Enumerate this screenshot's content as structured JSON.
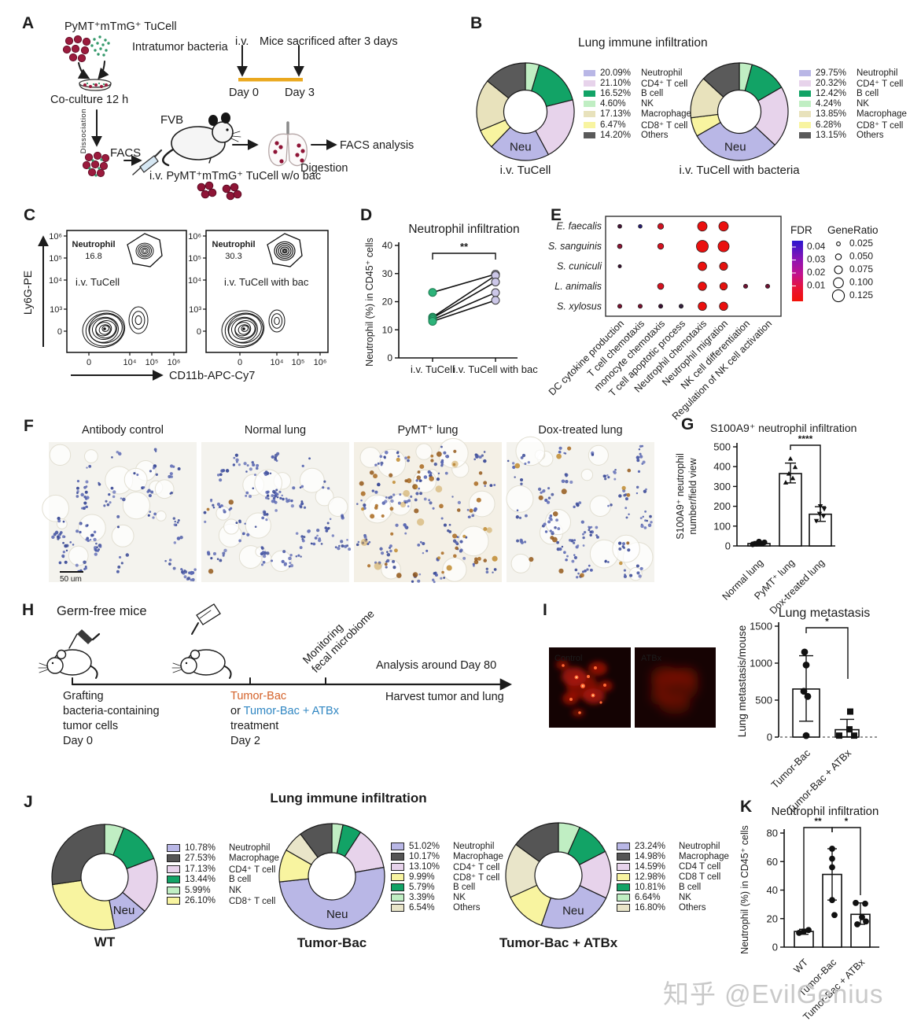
{
  "watermark": {
    "text": "知乎 @EvilGenius"
  },
  "panelA": {
    "label": "A",
    "cell_title": "PyMT⁺mTmG⁺ TuCell",
    "bacteria_label": "Intratumor bacteria",
    "coculture": "Co-culture 12 h",
    "dissociation": "Dissociation",
    "facs": "FACS",
    "fvb": "FVB",
    "iv_line": "i.v. PyMT⁺mTmG⁺ TuCell w/o bac",
    "digestion": "Digestion",
    "facs_analysis": "FACS analysis",
    "timeline": {
      "iv": "i.v.",
      "sacrificed": "Mice sacrificed after 3 days",
      "day0": "Day 0",
      "day3": "Day 3"
    }
  },
  "panelB": {
    "label": "B",
    "title": "Lung immune infiltration"
  },
  "panelC": {
    "label": "C",
    "ylabel": "Ly6G-PE",
    "xlabel": "CD11b-APC-Cy7",
    "yticks": [
      "10⁶",
      "10⁵",
      "10⁴",
      "10³",
      "0"
    ],
    "xticks": [
      "0",
      "10⁴",
      "10⁵",
      "10⁶"
    ],
    "plots": [
      {
        "gate_label": "Neutrophil",
        "gate_value": "16.8",
        "sample": "i.v. TuCell"
      },
      {
        "gate_label": "Neutrophil",
        "gate_value": "30.3",
        "sample": "i.v. TuCell with bac"
      }
    ]
  },
  "panelD": {
    "label": "D"
  },
  "panelE": {
    "label": "E"
  },
  "panelF": {
    "label": "F",
    "scale_bar": "50 um",
    "images": [
      {
        "title": "Antibody control",
        "stain": 0
      },
      {
        "title": "Normal lung",
        "stain": 3
      },
      {
        "title": "PyMT⁺ lung",
        "stain": 55
      },
      {
        "title": "Dox-treated lung",
        "stain": 16
      }
    ]
  },
  "panelG": {
    "label": "G"
  },
  "panelH": {
    "label": "H",
    "title": "Germ-free mice",
    "grafting": [
      "Grafting",
      "bacteria-containing",
      "tumor cells",
      "Day 0"
    ],
    "treat_orange": "Tumor-Bac",
    "treat_or": "or ",
    "treat_blue": "Tumor-Bac + ATBx",
    "treat_line3": "treatment",
    "treat_line4": "Day 2",
    "monitor_line1": "Monitoring",
    "monitor_line2": "fecal microbiome",
    "analysis": "Analysis around Day 80",
    "harvest": "Harvest tumor and lung",
    "orange_color": "#d4622a",
    "blue_color": "#2f86c2"
  },
  "panelI": {
    "label": "I",
    "images": [
      {
        "label": "Control"
      },
      {
        "label": "ATBx"
      }
    ]
  },
  "panelJ": {
    "label": "J",
    "title": "Lung immune infiltration"
  },
  "panelK": {
    "label": "K"
  },
  "chart_data": [
    {
      "id": "B1",
      "type": "donut",
      "title": "Lung immune infiltration",
      "caption": "i.v. TuCell",
      "center_label": "Neu",
      "legend": [
        {
          "pct": "20.09%",
          "v": 20.09,
          "label": "Neutrophil",
          "color": "#b9b7e6"
        },
        {
          "pct": "21.10%",
          "v": 21.1,
          "label": "CD4⁺ T cell",
          "color": "#e7d3eb"
        },
        {
          "pct": "16.52%",
          "v": 16.52,
          "label": "B cell",
          "color": "#12a366"
        },
        {
          "pct": "4.60%",
          "v": 4.6,
          "label": "NK",
          "color": "#c0eec3"
        },
        {
          "pct": "17.13%",
          "v": 17.13,
          "label": "Macrophage",
          "color": "#e8e2bc"
        },
        {
          "pct": "6.47%",
          "v": 6.47,
          "label": "CD8⁺ T cell",
          "color": "#f8f4a0"
        },
        {
          "pct": "14.20%",
          "v": 14.2,
          "label": "Others",
          "color": "#5a5a5a"
        }
      ],
      "order": [
        "NK",
        "B cell",
        "CD4⁺ T cell",
        "Neutrophil",
        "CD8⁺ T cell",
        "Macrophage",
        "Others"
      ]
    },
    {
      "id": "B2",
      "type": "donut",
      "title": "Lung immune infiltration",
      "caption": "i.v. TuCell with bacteria",
      "center_label": "Neu",
      "legend": [
        {
          "pct": "29.75%",
          "v": 29.75,
          "label": "Neutrophil",
          "color": "#b9b7e6"
        },
        {
          "pct": "20.32%",
          "v": 20.32,
          "label": "CD4⁺ T cell",
          "color": "#e7d3eb"
        },
        {
          "pct": "12.42%",
          "v": 12.42,
          "label": "B cell",
          "color": "#12a366"
        },
        {
          "pct": "4.24%",
          "v": 4.24,
          "label": "NK",
          "color": "#c0eec3"
        },
        {
          "pct": "13.85%",
          "v": 13.85,
          "label": "Macrophage",
          "color": "#e8e2bc"
        },
        {
          "pct": "6.28%",
          "v": 6.28,
          "label": "CD8⁺ T cell",
          "color": "#f8f4a0"
        },
        {
          "pct": "13.15%",
          "v": 13.15,
          "label": "Others",
          "color": "#5a5a5a"
        }
      ],
      "order": [
        "NK",
        "B cell",
        "CD4⁺ T cell",
        "Neutrophil",
        "CD8⁺ T cell",
        "Macrophage",
        "Others"
      ]
    },
    {
      "id": "D",
      "type": "paired-line",
      "title": "Neutrophil infiltration",
      "ylabel": "Neutrophil (%) in CD45⁺ cells",
      "ylim": [
        0,
        40
      ],
      "yticks": [
        0,
        10,
        20,
        30,
        40
      ],
      "categories": [
        "i.v. TuCell",
        "i.v. TuCell with bac"
      ],
      "pairs": [
        [
          23.3,
          29.8
        ],
        [
          14.5,
          29.3
        ],
        [
          14.2,
          27.0
        ],
        [
          13.6,
          23.2
        ],
        [
          13.0,
          20.5
        ]
      ],
      "sig": "**",
      "left_color": "#2db37a",
      "right_color": "#ccc7e8"
    },
    {
      "id": "E",
      "type": "dotplot",
      "rows": [
        "E. faecalis",
        "S. sanguinis",
        "S. cuniculi",
        "L. animalis",
        "S. xylosus"
      ],
      "cols": [
        "DC cytokine production",
        "T cell chemotaxis",
        "monocyte chemotaxis",
        "T cell apoptotic process",
        "Neutrophil chemotaxis",
        "Neutrophil migration",
        "NK cell differentiation",
        "Regulation of NK cell activation"
      ],
      "highlight_cols": [
        4,
        5
      ],
      "highlight_color": "#e8192c",
      "dots": [
        {
          "r": 0,
          "c": 0,
          "gr": 0.027,
          "fdr": 0.03,
          "col": "#451335"
        },
        {
          "r": 0,
          "c": 1,
          "gr": 0.025,
          "fdr": 0.04,
          "col": "#261c6e"
        },
        {
          "r": 0,
          "c": 2,
          "gr": 0.05,
          "fdr": 0.012,
          "col": "#cf1322"
        },
        {
          "r": 0,
          "c": 4,
          "gr": 0.095,
          "fdr": 0.005,
          "col": "#ea100f"
        },
        {
          "r": 0,
          "c": 5,
          "gr": 0.095,
          "fdr": 0.005,
          "col": "#ea100f"
        },
        {
          "r": 1,
          "c": 0,
          "gr": 0.035,
          "fdr": 0.02,
          "col": "#8c1535"
        },
        {
          "r": 1,
          "c": 2,
          "gr": 0.052,
          "fdr": 0.01,
          "col": "#d41220"
        },
        {
          "r": 1,
          "c": 4,
          "gr": 0.125,
          "fdr": 0.004,
          "col": "#ea100f"
        },
        {
          "r": 1,
          "c": 5,
          "gr": 0.115,
          "fdr": 0.004,
          "col": "#ea100f"
        },
        {
          "r": 2,
          "c": 0,
          "gr": 0.02,
          "fdr": 0.03,
          "col": "#3a1030"
        },
        {
          "r": 2,
          "c": 4,
          "gr": 0.085,
          "fdr": 0.005,
          "col": "#ea100f"
        },
        {
          "r": 2,
          "c": 5,
          "gr": 0.078,
          "fdr": 0.006,
          "col": "#e3120f"
        },
        {
          "r": 3,
          "c": 2,
          "gr": 0.055,
          "fdr": 0.01,
          "col": "#d41220"
        },
        {
          "r": 3,
          "c": 4,
          "gr": 0.082,
          "fdr": 0.005,
          "col": "#ea100f"
        },
        {
          "r": 3,
          "c": 5,
          "gr": 0.072,
          "fdr": 0.006,
          "col": "#e3120f"
        },
        {
          "r": 3,
          "c": 6,
          "gr": 0.03,
          "fdr": 0.02,
          "col": "#6e1232"
        },
        {
          "r": 3,
          "c": 7,
          "gr": 0.03,
          "fdr": 0.02,
          "col": "#6e1232"
        },
        {
          "r": 4,
          "c": 0,
          "gr": 0.03,
          "fdr": 0.02,
          "col": "#7a1230"
        },
        {
          "r": 4,
          "c": 1,
          "gr": 0.03,
          "fdr": 0.022,
          "col": "#7a1230"
        },
        {
          "r": 4,
          "c": 2,
          "gr": 0.03,
          "fdr": 0.03,
          "col": "#3a1030"
        },
        {
          "r": 4,
          "c": 3,
          "gr": 0.03,
          "fdr": 0.032,
          "col": "#33203c"
        },
        {
          "r": 4,
          "c": 4,
          "gr": 0.082,
          "fdr": 0.005,
          "col": "#ea100f"
        },
        {
          "r": 4,
          "c": 5,
          "gr": 0.082,
          "fdr": 0.005,
          "col": "#ea100f"
        }
      ],
      "fdr_legend": {
        "title": "FDR",
        "ticks": [
          "0.04",
          "0.03",
          "0.02",
          "0.01"
        ],
        "top_color": "#2a17cf",
        "bottom_color": "#f21208"
      },
      "generatio_legend": {
        "title": "GeneRatio",
        "sizes": [
          0.025,
          0.05,
          0.075,
          0.1,
          0.125
        ],
        "labels": [
          "0.025",
          "0.050",
          "0.075",
          "0.100",
          "0.125"
        ]
      }
    },
    {
      "id": "G",
      "type": "bar",
      "title": "S100A9⁺ neutrophil infiltration",
      "ylabel_lines": [
        "S100A9⁺ neutrophil",
        "number/field view"
      ],
      "ylim": [
        0,
        500
      ],
      "yticks": [
        0,
        100,
        200,
        300,
        400,
        500
      ],
      "categories": [
        "Normal lung",
        "PyMT⁺ lung",
        "Dox-treated lung"
      ],
      "values": [
        12,
        365,
        160
      ],
      "errors": [
        [
          4,
          22
        ],
        [
          318,
          418
        ],
        [
          124,
          198
        ]
      ],
      "points": [
        [
          8,
          11,
          14,
          18,
          22
        ],
        [
          320,
          342,
          365,
          398,
          440
        ],
        [
          126,
          150,
          162,
          186,
          200
        ]
      ],
      "markers": [
        "circle",
        "triangle-up",
        "triangle-down"
      ],
      "sigs": [
        {
          "from": 1,
          "to": 2,
          "label": "****"
        }
      ]
    },
    {
      "id": "I",
      "type": "bar",
      "title": "Lung metastasis",
      "ylabel_lines": [
        "Lung metastasis/mouse"
      ],
      "ylim": [
        0,
        1500
      ],
      "yticks": [
        0,
        500,
        1000,
        1500
      ],
      "categories": [
        "Tumor-Bac",
        "Tumor-Bac + ATBx"
      ],
      "values": [
        650,
        100
      ],
      "errors": [
        [
          215,
          1100
        ],
        [
          5,
          240
        ]
      ],
      "points": [
        [
          1150,
          975,
          620,
          550,
          20
        ],
        [
          345,
          105,
          20,
          20
        ]
      ],
      "markers": [
        "circle",
        "square"
      ],
      "sigs": [
        {
          "from": 0,
          "to": 1,
          "label": "*"
        }
      ],
      "dashed_baseline": true
    },
    {
      "id": "J1",
      "type": "donut",
      "title": "Lung immune infiltration",
      "caption": "WT",
      "center_label": "Neu",
      "legend": [
        {
          "pct": "10.78%",
          "v": 10.78,
          "label": "Neutrophil",
          "color": "#b9b7e6"
        },
        {
          "pct": "27.53%",
          "v": 27.53,
          "label": "Macrophage",
          "color": "#555555"
        },
        {
          "pct": "17.13%",
          "v": 17.13,
          "label": "CD4⁺ T cell",
          "color": "#e7d3eb"
        },
        {
          "pct": "13.44%",
          "v": 13.44,
          "label": "B cell",
          "color": "#12a366"
        },
        {
          "pct": "5.99%",
          "v": 5.99,
          "label": "NK",
          "color": "#c0eec3"
        },
        {
          "pct": "26.10%",
          "v": 26.1,
          "label": "CD8⁺ T cell",
          "color": "#f8f4a0"
        }
      ],
      "order": [
        "NK",
        "B cell",
        "CD4⁺ T cell",
        "Neutrophil",
        "CD8⁺ T cell",
        "Macrophage"
      ]
    },
    {
      "id": "J2",
      "type": "donut",
      "title": "Lung immune infiltration",
      "caption": "Tumor-Bac",
      "center_label": "Neu",
      "legend": [
        {
          "pct": "51.02%",
          "v": 51.02,
          "label": "Neutrophil",
          "color": "#b9b7e6"
        },
        {
          "pct": "10.17%",
          "v": 10.17,
          "label": "Macrophage",
          "color": "#555555"
        },
        {
          "pct": "13.10%",
          "v": 13.1,
          "label": "CD4⁺ T cell",
          "color": "#e7d3eb"
        },
        {
          "pct": "9.99%",
          "v": 9.99,
          "label": "CD8⁺ T cell",
          "color": "#f8f4a0"
        },
        {
          "pct": "5.79%",
          "v": 5.79,
          "label": "B cell",
          "color": "#12a366"
        },
        {
          "pct": "3.39%",
          "v": 3.39,
          "label": "NK",
          "color": "#c0eec3"
        },
        {
          "pct": "6.54%",
          "v": 6.54,
          "label": "Others",
          "color": "#e9e5c9"
        }
      ],
      "order": [
        "NK",
        "B cell",
        "CD4⁺ T cell",
        "Neutrophil",
        "CD8⁺ T cell",
        "Others",
        "Macrophage"
      ]
    },
    {
      "id": "J3",
      "type": "donut",
      "title": "Lung immune infiltration",
      "caption": "Tumor-Bac + ATBx",
      "center_label": "Neu",
      "legend": [
        {
          "pct": "23.24%",
          "v": 23.24,
          "label": "Neutrophil",
          "color": "#b9b7e6"
        },
        {
          "pct": "14.98%",
          "v": 14.98,
          "label": "Macrophage",
          "color": "#555555"
        },
        {
          "pct": "14.59%",
          "v": 14.59,
          "label": "CD4 T cell",
          "color": "#e7d3eb"
        },
        {
          "pct": "12.98%",
          "v": 12.98,
          "label": "CD8 T cell",
          "color": "#f8f4a0"
        },
        {
          "pct": "10.81%",
          "v": 10.81,
          "label": "B cell",
          "color": "#12a366"
        },
        {
          "pct": "6.64%",
          "v": 6.64,
          "label": "NK",
          "color": "#c0eec3"
        },
        {
          "pct": "16.80%",
          "v": 16.8,
          "label": "Others",
          "color": "#e9e5c9"
        }
      ],
      "order": [
        "NK",
        "B cell",
        "CD4 T cell",
        "Neutrophil",
        "CD8 T cell",
        "Others",
        "Macrophage"
      ]
    },
    {
      "id": "K",
      "type": "bar",
      "title": "Neutrophil infiltration",
      "ylabel_lines": [
        "Neutrophil (%) in CD45⁺ cells"
      ],
      "ylim": [
        0,
        80
      ],
      "yticks": [
        0,
        20,
        40,
        60,
        80
      ],
      "categories": [
        "WT",
        "Tumor-Bac",
        "Tumor-Bac + ATBx"
      ],
      "values": [
        11,
        51,
        23
      ],
      "errors": [
        [
          9,
          12.5
        ],
        [
          33,
          69
        ],
        [
          16,
          31
        ]
      ],
      "points": [
        [
          10,
          11,
          12
        ],
        [
          69,
          62,
          56,
          33,
          22.5
        ],
        [
          31,
          30.5,
          21,
          18,
          16
        ]
      ],
      "markers": [
        "circle",
        "circle",
        "circle"
      ],
      "sigs": [
        {
          "from": 0,
          "to": 1,
          "label": "**"
        },
        {
          "from": 1,
          "to": 2,
          "label": "*"
        }
      ]
    }
  ]
}
